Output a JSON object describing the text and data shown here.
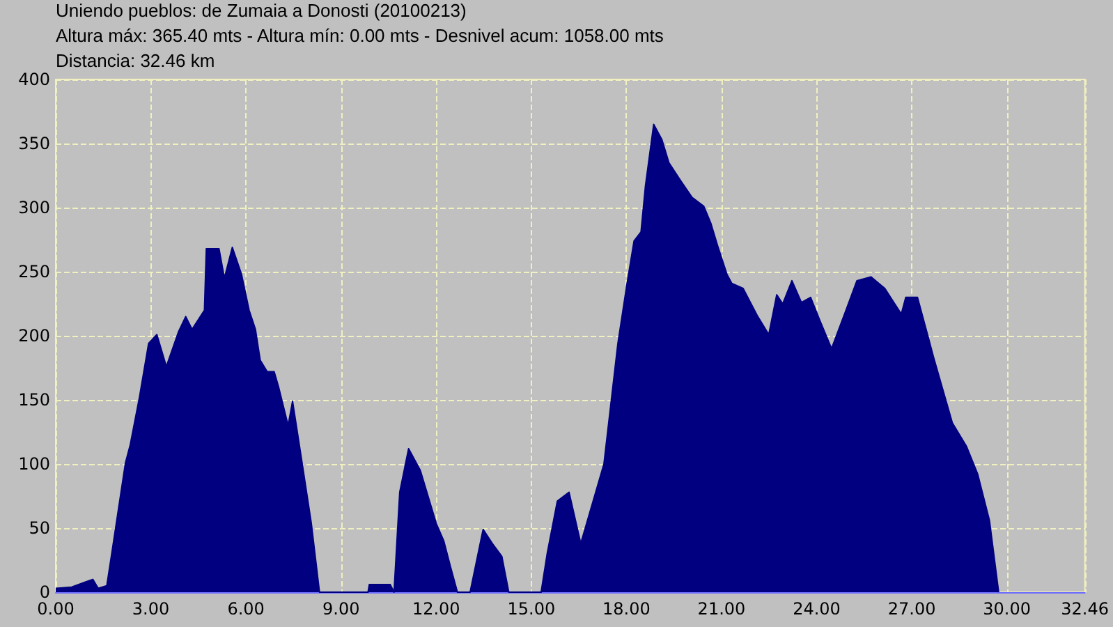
{
  "chart_data": {
    "type": "area",
    "title": "Uniendo pueblos: de Zumaia a Donosti (20100213)",
    "subtitle": "Altura máx: 365.40 mts - Altura mín: 0.00 mts - Desnivel acum: 1058.00 mts",
    "annotations": [
      "Distancia: 32.46 km"
    ],
    "x": [
      0,
      0.5,
      0.95,
      1.17,
      1.34,
      1.61,
      1.76,
      2.2,
      2.35,
      2.64,
      2.93,
      3.19,
      3.49,
      3.87,
      4.1,
      4.3,
      4.69,
      4.75,
      5.15,
      5.32,
      5.57,
      5.86,
      6.1,
      6.3,
      6.45,
      6.67,
      6.89,
      7.03,
      7.33,
      7.47,
      7.77,
      8.06,
      8.32,
      9.85,
      9.89,
      10.55,
      10.67,
      10.85,
      11.13,
      11.5,
      12.01,
      12.24,
      12.45,
      12.67,
      13.07,
      13.48,
      13.77,
      14.07,
      14.29,
      15.31,
      15.5,
      15.82,
      16.19,
      16.56,
      17.29,
      17.73,
      18.02,
      18.24,
      18.46,
      18.6,
      18.86,
      19.12,
      19.34,
      19.71,
      20.07,
      20.44,
      20.66,
      20.88,
      21.17,
      21.32,
      21.68,
      22.12,
      22.34,
      22.49,
      22.74,
      22.93,
      23.22,
      23.52,
      23.81,
      24.1,
      24.47,
      24.91,
      25.27,
      25.71,
      26.15,
      26.67,
      26.81,
      27.18,
      27.55,
      27.69,
      28.28,
      28.72,
      29.08,
      29.45,
      29.74
    ],
    "series": [
      {
        "color": "#000080",
        "values": [
          3,
          4,
          8,
          10,
          3,
          5,
          29,
          101,
          115,
          152,
          194,
          201,
          176,
          203,
          215,
          205,
          220,
          268,
          268,
          245,
          269,
          248,
          220,
          205,
          181,
          172,
          172,
          160,
          130,
          149,
          101,
          54,
          0,
          0,
          6,
          6,
          0,
          78,
          112,
          95,
          53,
          40,
          20,
          0,
          0,
          49,
          38,
          28,
          0,
          0,
          30,
          71,
          78,
          38,
          100,
          194,
          241,
          274,
          281,
          317,
          365,
          353,
          335,
          321,
          308,
          301,
          288,
          270,
          248,
          241,
          237,
          216,
          207,
          201,
          232,
          225,
          243,
          226,
          230,
          212,
          190,
          219,
          243,
          246,
          237,
          217,
          230,
          230,
          196,
          183,
          132,
          114,
          92,
          56,
          0
        ]
      }
    ],
    "xlim": [
      0,
      32.46
    ],
    "xticks": [
      {
        "value": 0,
        "label": "0.00"
      },
      {
        "value": 3,
        "label": "3.00"
      },
      {
        "value": 6,
        "label": "6.00"
      },
      {
        "value": 9,
        "label": "9.00"
      },
      {
        "value": 12,
        "label": "12.00"
      },
      {
        "value": 15,
        "label": "15.00"
      },
      {
        "value": 18,
        "label": "18.00"
      },
      {
        "value": 21,
        "label": "21.00"
      },
      {
        "value": 24,
        "label": "24.00"
      },
      {
        "value": 27,
        "label": "27.00"
      },
      {
        "value": 30,
        "label": "30.00"
      },
      32.46
    ],
    "ylim": [
      0,
      400
    ],
    "yticks": [
      0,
      50,
      100,
      150,
      200,
      250,
      300,
      350,
      400
    ],
    "grid": true,
    "marker": "none"
  }
}
